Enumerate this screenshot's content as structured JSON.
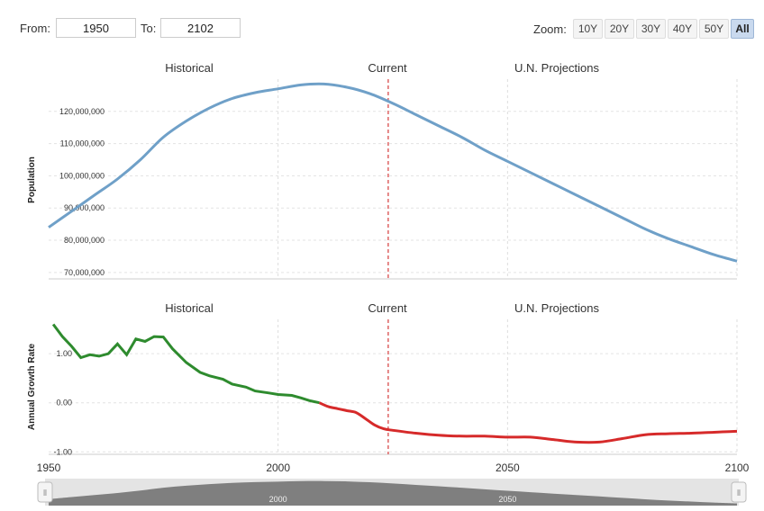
{
  "range": {
    "from_label": "From:",
    "from_value": "1950",
    "to_label": "To:",
    "to_value": "2102"
  },
  "zoom": {
    "label": "Zoom:",
    "buttons": [
      "10Y",
      "20Y",
      "30Y",
      "40Y",
      "50Y",
      "All"
    ],
    "active": "All"
  },
  "colors": {
    "population": "#6fa0c8",
    "growth_hist": "#2e8b2e",
    "growth_proj": "#d62a2a",
    "current_line": "#d63b3b"
  },
  "chart_data": [
    {
      "type": "line",
      "ylabel": "Population",
      "section_labels": [
        "Historical",
        "Current",
        "U.N. Projections"
      ],
      "current_year": 2024,
      "xlim": [
        1950,
        2100
      ],
      "ylim": [
        68000000,
        130000000
      ],
      "y_ticks": [
        "120,000,000",
        "110,000,000",
        "100,000,000",
        "90,000,000",
        "80,000,000",
        "70,000,000"
      ],
      "y_tick_values": [
        120000000,
        110000000,
        100000000,
        90000000,
        80000000,
        70000000
      ],
      "series": [
        {
          "x": [
            1950,
            1955,
            1960,
            1965,
            1970,
            1975,
            1980,
            1985,
            1990,
            1995,
            2000,
            2005,
            2010,
            2015,
            2020,
            2025,
            2030,
            2035,
            2040,
            2045,
            2050,
            2055,
            2060,
            2065,
            2070,
            2075,
            2080,
            2085,
            2090,
            2095,
            2100
          ],
          "values": [
            84000000,
            89000000,
            94000000,
            99000000,
            105000000,
            112000000,
            117000000,
            121000000,
            124000000,
            125800000,
            127000000,
            128200000,
            128500000,
            127500000,
            125500000,
            122500000,
            119000000,
            115500000,
            112000000,
            108000000,
            104500000,
            101000000,
            97500000,
            94000000,
            90500000,
            87000000,
            83500000,
            80500000,
            78000000,
            75500000,
            73500000
          ]
        }
      ]
    },
    {
      "type": "line",
      "ylabel": "Annual Growth Rate",
      "section_labels": [
        "Historical",
        "Current",
        "U.N. Projections"
      ],
      "current_year": 2024,
      "xlim": [
        1950,
        2100
      ],
      "ylim": [
        -1.05,
        1.7
      ],
      "y_ticks": [
        "1.00",
        "0.00",
        "-1.00"
      ],
      "y_tick_values": [
        1.0,
        0.0,
        -1.0
      ],
      "x_ticks": [
        "1950",
        "2000",
        "2050",
        "2100"
      ],
      "x_tick_values": [
        1950,
        2000,
        2050,
        2100
      ],
      "series": [
        {
          "x": [
            1951,
            1953,
            1955,
            1957,
            1959,
            1961,
            1963,
            1965,
            1967,
            1969,
            1971,
            1973,
            1975,
            1977,
            1980,
            1983,
            1985,
            1988,
            1990,
            1993,
            1995,
            1998,
            2000,
            2003,
            2005,
            2007,
            2009
          ],
          "values": [
            1.6,
            1.35,
            1.15,
            0.92,
            0.98,
            0.95,
            1.0,
            1.2,
            0.98,
            1.3,
            1.25,
            1.35,
            1.34,
            1.1,
            0.82,
            0.62,
            0.55,
            0.48,
            0.38,
            0.32,
            0.24,
            0.2,
            0.17,
            0.15,
            0.1,
            0.04,
            0.0
          ]
        },
        {
          "x": [
            2009,
            2011,
            2013,
            2015,
            2017,
            2019,
            2021,
            2023,
            2025,
            2030,
            2035,
            2040,
            2045,
            2050,
            2055,
            2060,
            2065,
            2070,
            2075,
            2080,
            2085,
            2090,
            2095,
            2100
          ],
          "values": [
            0.0,
            -0.08,
            -0.12,
            -0.16,
            -0.2,
            -0.32,
            -0.45,
            -0.53,
            -0.56,
            -0.62,
            -0.66,
            -0.68,
            -0.68,
            -0.7,
            -0.7,
            -0.75,
            -0.8,
            -0.8,
            -0.73,
            -0.65,
            -0.63,
            -0.62,
            -0.6,
            -0.58
          ]
        }
      ]
    }
  ],
  "navigator": {
    "labels": [
      "2000",
      "2050"
    ],
    "label_values": [
      2000,
      2050
    ],
    "left_handle": "⫴",
    "right_handle": "⫴"
  }
}
